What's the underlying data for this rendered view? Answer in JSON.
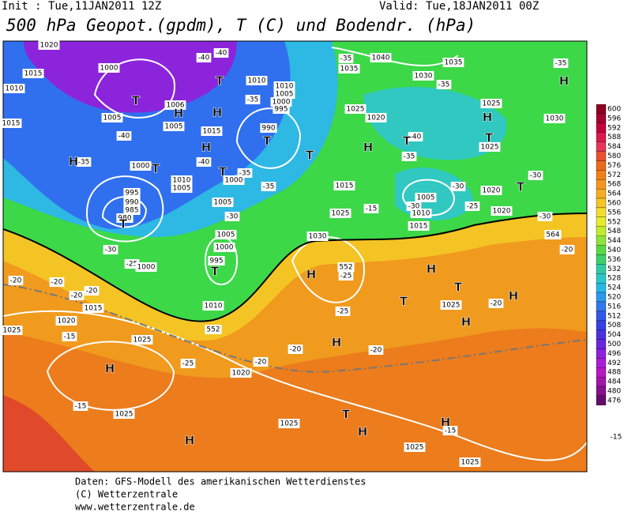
{
  "header": {
    "init": "Init : Tue,11JAN2011 12Z",
    "valid": "Valid: Tue,18JAN2011 00Z",
    "title": "500 hPa Geopot.(gpdm), T (C) und Bodendr. (hPa)"
  },
  "colorbar": {
    "levels": [
      600,
      596,
      592,
      588,
      584,
      580,
      576,
      572,
      568,
      564,
      560,
      556,
      552,
      548,
      544,
      540,
      536,
      532,
      528,
      524,
      520,
      516,
      512,
      508,
      504,
      500,
      496,
      492,
      488,
      484,
      480,
      476
    ],
    "colors": [
      "#8c0022",
      "#a8002e",
      "#c3003c",
      "#d9194e",
      "#e8345a",
      "#e85032",
      "#ec6a1e",
      "#f08018",
      "#f4961c",
      "#f6ac22",
      "#f8c428",
      "#f6dc30",
      "#e6ec2a",
      "#c0ec2e",
      "#8ee43a",
      "#5ad844",
      "#3cd06a",
      "#30cca0",
      "#2ac8c8",
      "#26b8e4",
      "#2a98ec",
      "#3078ee",
      "#3058e8",
      "#3440e0",
      "#4a30dc",
      "#6a26dc",
      "#8c20dc",
      "#aa1cd8",
      "#b818c4",
      "#a214aa",
      "#84108c",
      "#640c6c"
    ]
  },
  "map": {
    "labels": [
      "1020",
      "1015",
      "1010",
      "1015",
      "1000",
      "1005",
      "1006",
      "1005",
      "-40",
      "-40",
      "1010",
      "1010",
      "1005",
      "1000",
      "995",
      "-35",
      "990",
      "-40",
      "-35",
      "1000",
      "1015",
      "1010",
      "1005",
      "-40",
      "-35",
      "1000",
      "-35",
      "1005",
      "995",
      "990",
      "985",
      "980",
      "-30",
      "1005",
      "1000",
      "995",
      "-30",
      "-25",
      "1000",
      "-20",
      "-20",
      "-20",
      "1015",
      "1020",
      "1010",
      "552",
      "552",
      "564",
      "-20",
      "1025",
      "-15",
      "1025",
      "-25",
      "-20",
      "1020",
      "-15",
      "1025",
      "1025",
      "1025",
      "1025",
      "-15",
      "-15",
      "-20",
      "-20",
      "-25",
      "-20",
      "1025",
      "1030",
      "-25",
      "1025",
      "1015",
      "-15",
      "1040",
      "-35",
      "1035",
      "1030",
      "-35",
      "1035",
      "-35",
      "1025",
      "1020",
      "-40",
      "-35",
      "1025",
      "1025",
      "1030",
      "-30",
      "1020",
      "1005",
      "-30",
      "-30",
      "1010",
      "-25",
      "1015",
      "1020",
      "-30",
      "-20"
    ],
    "centers": [
      "T",
      "H",
      "H",
      "H",
      "T",
      "T",
      "T",
      "H",
      "T",
      "T",
      "T",
      "H",
      "H",
      "T",
      "H",
      "T",
      "T",
      "H",
      "H",
      "T",
      "T",
      "H",
      "H",
      "H",
      "H",
      "H",
      "T",
      "H",
      "H",
      "T"
    ]
  },
  "footer": [
    "Daten: GFS-Modell des amerikanischen Wetterdienstes",
    "(C) Wetterzentrale",
    "www.wetterzentrale.de"
  ]
}
